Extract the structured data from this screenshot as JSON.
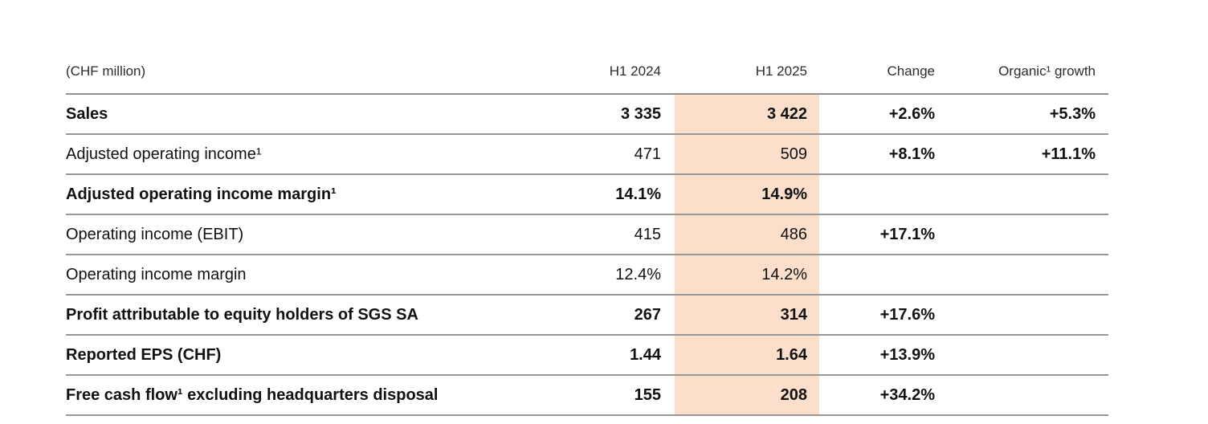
{
  "table": {
    "unit_label": "(CHF million)",
    "columns": [
      "H1 2024",
      "H1 2025",
      "Change",
      "Organic¹ growth"
    ],
    "highlight_color": "#fcdfcb",
    "rule_color": "#979797",
    "rows": [
      {
        "label": "Sales",
        "bold": true,
        "h1_2024": "3 335",
        "h1_2025": "3 422",
        "change": "+2.6%",
        "organic_growth": "+5.3%"
      },
      {
        "label": "Adjusted operating income¹",
        "bold": false,
        "h1_2024": "471",
        "h1_2025": "509",
        "change": "+8.1%",
        "organic_growth": "+11.1%"
      },
      {
        "label": "Adjusted operating income margin¹",
        "bold": true,
        "h1_2024": "14.1%",
        "h1_2025": "14.9%",
        "change": "",
        "organic_growth": ""
      },
      {
        "label": "Operating income (EBIT)",
        "bold": false,
        "h1_2024": "415",
        "h1_2025": "486",
        "change": "+17.1%",
        "organic_growth": ""
      },
      {
        "label": "Operating income margin",
        "bold": false,
        "h1_2024": "12.4%",
        "h1_2025": "14.2%",
        "change": "",
        "organic_growth": ""
      },
      {
        "label": "Profit attributable to equity holders of SGS SA",
        "bold": true,
        "h1_2024": "267",
        "h1_2025": "314",
        "change": "+17.6%",
        "organic_growth": ""
      },
      {
        "label": "Reported EPS (CHF)",
        "bold": true,
        "h1_2024": "1.44",
        "h1_2025": "1.64",
        "change": "+13.9%",
        "organic_growth": ""
      },
      {
        "label": "Free cash flow¹ excluding headquarters disposal",
        "bold": true,
        "h1_2024": "155",
        "h1_2025": "208",
        "change": "+34.2%",
        "organic_growth": ""
      }
    ]
  }
}
